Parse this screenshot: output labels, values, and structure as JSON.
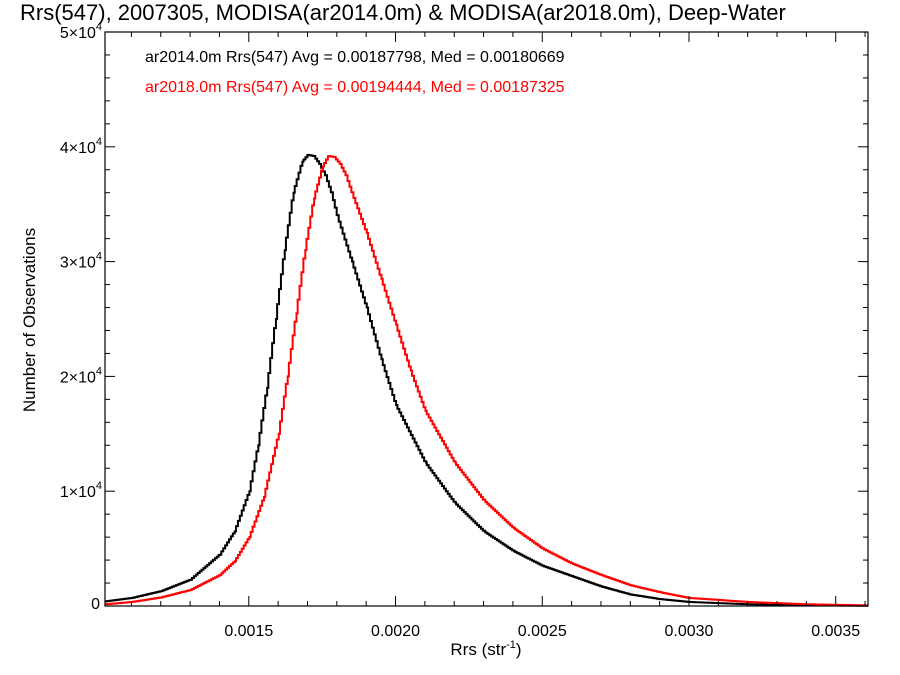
{
  "chart_data": {
    "type": "line",
    "title": "Rrs(547), 2007305, MODISA(ar2014.0m) & MODISA(ar2018.0m), Deep-Water",
    "xlabel": "Rrs (str",
    "xlabel_sup": "-1",
    "xlabel_end": ")",
    "ylabel": "Number of Observations",
    "xlim": [
      0.00101,
      0.00361
    ],
    "ylim": [
      0,
      50000
    ],
    "xticks": [
      {
        "value": 0.0015,
        "label": "0.0015"
      },
      {
        "value": 0.002,
        "label": "0.0020"
      },
      {
        "value": 0.0025,
        "label": "0.0025"
      },
      {
        "value": 0.003,
        "label": "0.0030"
      },
      {
        "value": 0.0035,
        "label": "0.0035"
      }
    ],
    "yticks": [
      {
        "value": 0,
        "mant": "0",
        "exp": ""
      },
      {
        "value": 10000,
        "mant": "1×10",
        "exp": "4"
      },
      {
        "value": 20000,
        "mant": "2×10",
        "exp": "4"
      },
      {
        "value": 30000,
        "mant": "3×10",
        "exp": "4"
      },
      {
        "value": 40000,
        "mant": "4×10",
        "exp": "4"
      },
      {
        "value": 50000,
        "mant": "5×10",
        "exp": "4"
      }
    ],
    "grid": false,
    "legend_position": "top-left",
    "series": [
      {
        "name": "ar2014.0m Rrs(547) Avg = 0.00187798, Med = 0.00180669",
        "color": "#000000",
        "points": [
          [
            0.00101,
            400
          ],
          [
            0.0011,
            700
          ],
          [
            0.0012,
            1300
          ],
          [
            0.0013,
            2300
          ],
          [
            0.0014,
            4500
          ],
          [
            0.00145,
            6500
          ],
          [
            0.0015,
            10000
          ],
          [
            0.00153,
            14000
          ],
          [
            0.00156,
            19000
          ],
          [
            0.00159,
            25000
          ],
          [
            0.00162,
            31000
          ],
          [
            0.00165,
            36000
          ],
          [
            0.00168,
            38700
          ],
          [
            0.0017,
            39300
          ],
          [
            0.00172,
            39200
          ],
          [
            0.00174,
            38500
          ],
          [
            0.00176,
            37500
          ],
          [
            0.00178,
            36000
          ],
          [
            0.0018,
            34000
          ],
          [
            0.00185,
            30000
          ],
          [
            0.0019,
            26000
          ],
          [
            0.00195,
            21500
          ],
          [
            0.002,
            17500
          ],
          [
            0.0021,
            12500
          ],
          [
            0.0022,
            9000
          ],
          [
            0.0023,
            6500
          ],
          [
            0.0024,
            4800
          ],
          [
            0.0025,
            3500
          ],
          [
            0.0026,
            2600
          ],
          [
            0.0027,
            1700
          ],
          [
            0.0028,
            1000
          ],
          [
            0.0029,
            600
          ],
          [
            0.003,
            350
          ],
          [
            0.0032,
            150
          ],
          [
            0.0034,
            60
          ],
          [
            0.00361,
            20
          ]
        ]
      },
      {
        "name": "ar2018.0m Rrs(547) Avg = 0.00194444, Med = 0.00187325",
        "color": "#ff0000",
        "points": [
          [
            0.00101,
            150
          ],
          [
            0.0011,
            350
          ],
          [
            0.0012,
            750
          ],
          [
            0.0013,
            1400
          ],
          [
            0.0014,
            2700
          ],
          [
            0.00145,
            3900
          ],
          [
            0.0015,
            6000
          ],
          [
            0.00155,
            9500
          ],
          [
            0.0016,
            15000
          ],
          [
            0.00163,
            20000
          ],
          [
            0.00166,
            25500
          ],
          [
            0.00169,
            31000
          ],
          [
            0.00172,
            35500
          ],
          [
            0.00175,
            38300
          ],
          [
            0.00177,
            39200
          ],
          [
            0.00179,
            39100
          ],
          [
            0.00181,
            38500
          ],
          [
            0.00183,
            37500
          ],
          [
            0.00185,
            36000
          ],
          [
            0.0019,
            32500
          ],
          [
            0.00195,
            28500
          ],
          [
            0.002,
            24500
          ],
          [
            0.00205,
            20500
          ],
          [
            0.0021,
            17000
          ],
          [
            0.0022,
            12500
          ],
          [
            0.0023,
            9200
          ],
          [
            0.0024,
            6800
          ],
          [
            0.0025,
            5000
          ],
          [
            0.0026,
            3700
          ],
          [
            0.0027,
            2700
          ],
          [
            0.0028,
            1800
          ],
          [
            0.0029,
            1200
          ],
          [
            0.003,
            700
          ],
          [
            0.0032,
            350
          ],
          [
            0.0034,
            150
          ],
          [
            0.00361,
            50
          ]
        ]
      }
    ]
  }
}
